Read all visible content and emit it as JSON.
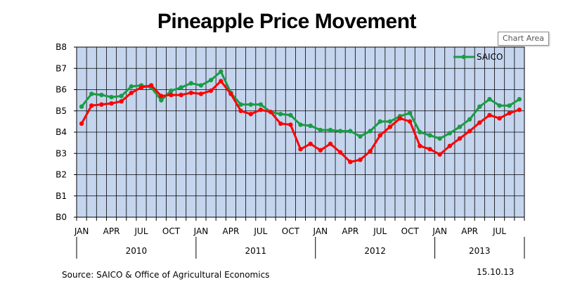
{
  "tooltip": {
    "label": "Chart Area"
  },
  "footer": {
    "source": "Source: SAICO & Office of Agricultural Economics",
    "date": "15.10.13"
  },
  "colors": {
    "plot_bg": "#c5d5ee",
    "grid": "#000000",
    "saico": "#1a9c45",
    "red_series": "#ff0000"
  },
  "chart_data": {
    "type": "line",
    "title": "Pineapple Price Movement",
    "xlabel": "",
    "ylabel": "",
    "ylim": [
      0,
      8
    ],
    "y_ticks": [
      0,
      1,
      2,
      3,
      4,
      5,
      6,
      7,
      8
    ],
    "y_tick_labels": [
      "B0",
      "B1",
      "B2",
      "B3",
      "B4",
      "B5",
      "B6",
      "B7",
      "B8"
    ],
    "month_count": 45,
    "x_tick_labels": [
      {
        "month": 0,
        "label": "JAN"
      },
      {
        "month": 3,
        "label": "APR"
      },
      {
        "month": 6,
        "label": "JUL"
      },
      {
        "month": 9,
        "label": "OCT"
      },
      {
        "month": 12,
        "label": "JAN"
      },
      {
        "month": 15,
        "label": "APR"
      },
      {
        "month": 18,
        "label": "JUL"
      },
      {
        "month": 21,
        "label": "OCT"
      },
      {
        "month": 24,
        "label": "JAN"
      },
      {
        "month": 27,
        "label": "APR"
      },
      {
        "month": 30,
        "label": "JUL"
      },
      {
        "month": 33,
        "label": "OCT"
      },
      {
        "month": 36,
        "label": "JAN"
      },
      {
        "month": 39,
        "label": "APR"
      },
      {
        "month": 42,
        "label": "JUL"
      }
    ],
    "years": [
      {
        "label": "2010",
        "start": 0,
        "end": 12
      },
      {
        "label": "2011",
        "start": 12,
        "end": 24
      },
      {
        "label": "2012",
        "start": 24,
        "end": 36
      },
      {
        "label": "2013",
        "start": 36,
        "end": 45
      }
    ],
    "legend": {
      "entries": [
        "SAICO"
      ],
      "placement": "top-right"
    },
    "series": [
      {
        "name": "SAICO",
        "legend": true,
        "color": "#1a9c45",
        "values": [
          5.2,
          5.8,
          5.75,
          5.65,
          5.7,
          6.15,
          6.2,
          6.1,
          5.5,
          5.95,
          6.1,
          6.3,
          6.2,
          6.45,
          6.85,
          5.85,
          5.3,
          5.3,
          5.3,
          4.95,
          4.85,
          4.8,
          4.35,
          4.3,
          4.1,
          4.1,
          4.05,
          4.05,
          3.8,
          4.05,
          4.5,
          4.5,
          4.75,
          4.9,
          4.0,
          3.85,
          3.7,
          3.95,
          4.25,
          4.6,
          5.2,
          5.55,
          5.25,
          5.25,
          5.55
        ]
      },
      {
        "name": "",
        "legend": false,
        "color": "#ff0000",
        "values": [
          4.4,
          5.25,
          5.3,
          5.35,
          5.45,
          5.85,
          6.1,
          6.2,
          5.7,
          5.75,
          5.75,
          5.85,
          5.8,
          5.95,
          6.4,
          5.8,
          5.0,
          4.85,
          5.05,
          4.95,
          4.4,
          4.35,
          3.2,
          3.45,
          3.15,
          3.45,
          3.05,
          2.6,
          2.7,
          3.1,
          3.85,
          4.25,
          4.65,
          4.5,
          3.35,
          3.2,
          2.95,
          3.35,
          3.7,
          4.05,
          4.45,
          4.8,
          4.65,
          4.9,
          5.05
        ]
      }
    ]
  }
}
